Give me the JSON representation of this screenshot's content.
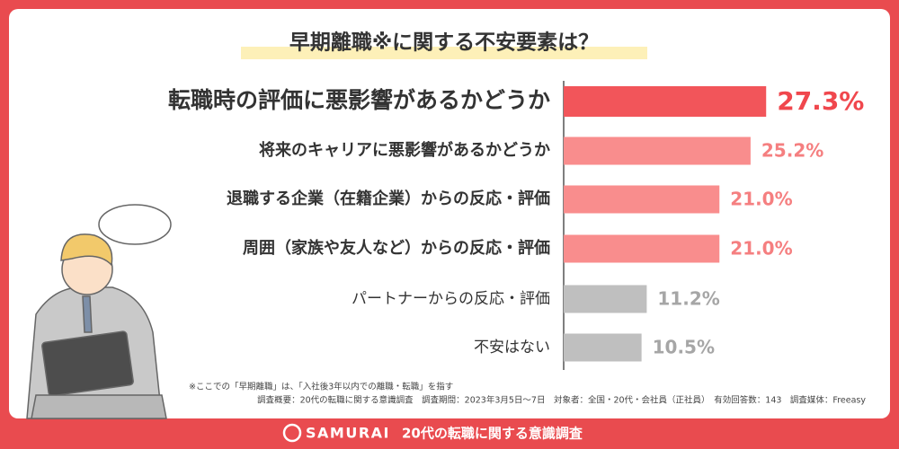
{
  "chart_data": {
    "type": "hbar",
    "title": "早期離職※に関する不安要素は？",
    "categories": [
      "転職時の評価に悪影響があるかどうか",
      "将来のキャリアに悪影響があるかどうか",
      "退職する企業（在籍企業）からの反応・評価",
      "周囲（家族や友人など）からの反応・評価",
      "パートナーからの反応・評価",
      "不安はない"
    ],
    "values": [
      27.3,
      25.2,
      21.0,
      21.0,
      11.2,
      10.5
    ],
    "value_labels": [
      "27.3%",
      "25.2%",
      "21.0%",
      "21.0%",
      "11.2%",
      "10.5%"
    ],
    "colors": [
      "#f2555a",
      "#f98d8d",
      "#f98d8d",
      "#f98d8d",
      "#bfbfbf",
      "#bfbfbf"
    ],
    "label_colors": [
      "#f0474d",
      "#f57f80",
      "#f57f80",
      "#f57f80",
      "#a6a6a6",
      "#a6a6a6"
    ],
    "footnote": "※ここでの「早期離職」は、「入社後3年以内での離職・転職」を指す",
    "survey": "調査概要：20代の転職に関する意識調査　調査期間：2023年3月5日〜7日　対象者：全国・20代・会社員（正社員）　有効回答数：143　調査媒体：Freeasy",
    "brand": "SAMURAI",
    "footer": "20代の転職に関する意識調査"
  }
}
